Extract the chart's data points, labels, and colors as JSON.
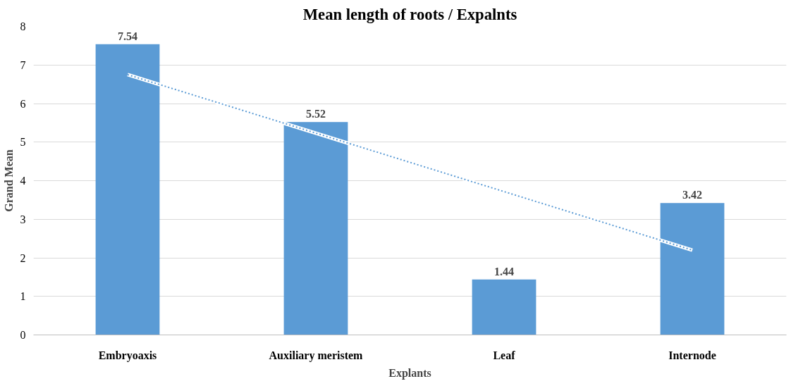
{
  "chart_data": {
    "type": "bar",
    "title": "Mean length of roots / Expalnts",
    "xlabel": "Explants",
    "ylabel": "Grand Mean",
    "categories": [
      "Embryoaxis",
      "Auxiliary meristem",
      "Leaf",
      "Internode"
    ],
    "series": [
      {
        "color": "#5b9bd5",
        "values": [
          7.54,
          5.52,
          1.44,
          3.42
        ],
        "value_labels": [
          "7.54",
          "5.52",
          "1.44",
          "3.42"
        ]
      },
      {
        "type": "line",
        "color": "#5b9bd5",
        "line_style": "dotted",
        "x": [
          "Embryoaxis",
          "Internode"
        ],
        "values": [
          6.75,
          2.2
        ]
      }
    ],
    "ylim": [
      0,
      8
    ],
    "yticks": [
      0,
      1,
      2,
      3,
      4,
      5,
      6,
      7,
      8
    ],
    "grid": "y"
  }
}
